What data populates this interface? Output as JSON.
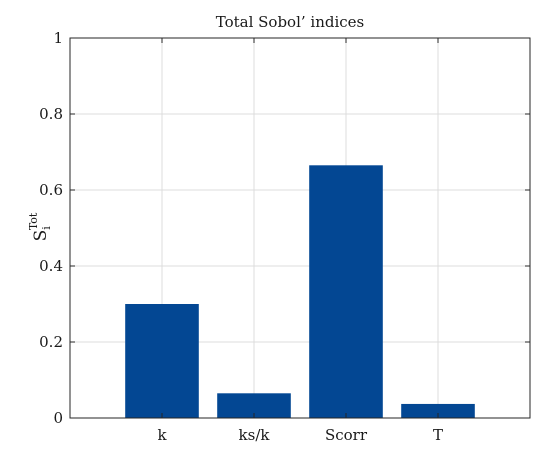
{
  "chart_data": {
    "type": "bar",
    "title": "Total Sobol’ indices",
    "categories": [
      "k",
      "ks/k",
      "Scorr",
      "T"
    ],
    "values": [
      0.3,
      0.065,
      0.665,
      0.037
    ],
    "xlabel": "",
    "ylabel": {
      "base": "S",
      "subscript": "i",
      "superscript": "Tot"
    },
    "ylim": [
      0,
      1
    ],
    "yticks": [
      0,
      0.2,
      0.4,
      0.6,
      0.8,
      1
    ],
    "yticklabels": [
      "0",
      "0.2",
      "0.4",
      "0.6",
      "0.8",
      "1"
    ],
    "xlim": [
      0,
      5
    ],
    "grid": true,
    "colors": {
      "bar": "#034793",
      "grid": "#dcdcdc",
      "axis": "#262626"
    }
  }
}
